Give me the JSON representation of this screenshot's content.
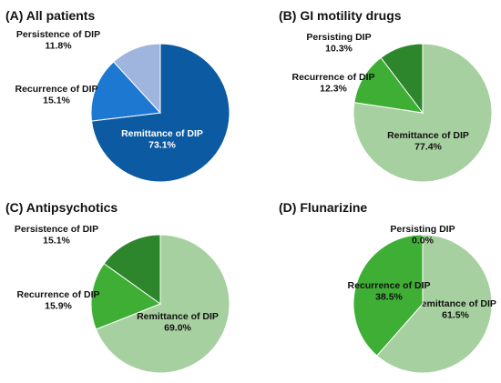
{
  "chart_data": [
    {
      "type": "pie",
      "title": "(A) All patients",
      "slices": [
        {
          "label": "Remittance of DIP",
          "value": 73.1,
          "display": "73.1%",
          "color": "#0b5aa2",
          "text_color": "#ffffff"
        },
        {
          "label": "Recurrence of DIP",
          "value": 15.1,
          "display": "15.1%",
          "color": "#1c78d0",
          "text_color": "#111111"
        },
        {
          "label": "Persistence of DIP",
          "value": 11.8,
          "display": "11.8%",
          "color": "#9fb5dd",
          "text_color": "#111111"
        }
      ]
    },
    {
      "type": "pie",
      "title": "(B) GI motility drugs",
      "slices": [
        {
          "label": "Remittance of DIP",
          "value": 77.4,
          "display": "77.4%",
          "color": "#a7d0a0",
          "text_color": "#111111"
        },
        {
          "label": "Recurrence of DIP",
          "value": 12.3,
          "display": "12.3%",
          "color": "#3fae35",
          "text_color": "#111111"
        },
        {
          "label": "Persisting DIP",
          "value": 10.3,
          "display": "10.3%",
          "color": "#2d862b",
          "text_color": "#111111"
        }
      ]
    },
    {
      "type": "pie",
      "title": "(C) Antipsychotics",
      "slices": [
        {
          "label": "Remittance of DIP",
          "value": 69.0,
          "display": "69.0%",
          "color": "#a7d0a0",
          "text_color": "#111111"
        },
        {
          "label": "Recurrence of DIP",
          "value": 15.9,
          "display": "15.9%",
          "color": "#3fae35",
          "text_color": "#111111"
        },
        {
          "label": "Persistence of DIP",
          "value": 15.1,
          "display": "15.1%",
          "color": "#2d862b",
          "text_color": "#111111"
        }
      ]
    },
    {
      "type": "pie",
      "title": "(D) Flunarizine",
      "slices": [
        {
          "label": "Remittance of DIP",
          "value": 61.5,
          "display": "61.5%",
          "color": "#a7d0a0",
          "text_color": "#111111"
        },
        {
          "label": "Recurrence of DIP",
          "value": 38.5,
          "display": "38.5%",
          "color": "#3fae35",
          "text_color": "#111111"
        },
        {
          "label": "Persisting DIP",
          "value": 0.0,
          "display": "0.0%",
          "color": "#2d862b",
          "text_color": "#111111"
        }
      ]
    }
  ]
}
